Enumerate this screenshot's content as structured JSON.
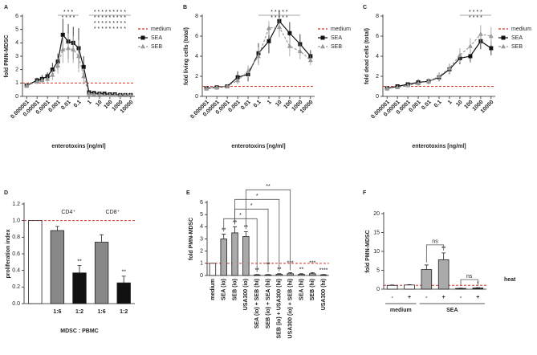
{
  "chart_data": [
    {
      "type": "line",
      "panel": "A",
      "ylabel": "fold PMN-MDSC",
      "xlabel": "enterotoxins [ng/ml]",
      "xscale": "log",
      "x": [
        1e-06,
        1e-05,
        3e-05,
        0.0001,
        0.0003,
        0.001,
        0.003,
        0.01,
        0.03,
        0.1,
        0.3,
        1,
        3,
        10,
        30,
        100,
        300,
        1000,
        3000,
        10000
      ],
      "xlim": [
        4e-07,
        25000
      ],
      "xticks": [
        1e-06,
        1e-05,
        0.0001,
        0.001,
        0.01,
        0.1,
        1,
        10,
        100,
        1000,
        10000
      ],
      "ylim": [
        0,
        6
      ],
      "yticks": [
        0,
        1,
        2,
        3,
        4,
        5,
        6
      ],
      "reference": {
        "name": "medium",
        "value": 1,
        "color": "#e0302a"
      },
      "series": [
        {
          "name": "SEA",
          "color": "#111111",
          "marker": "square",
          "dashed": false,
          "values": [
            0.8,
            1.2,
            1.3,
            1.5,
            2.0,
            2.6,
            4.6,
            4.1,
            4.0,
            3.6,
            2.2,
            0.3,
            0.25,
            0.2,
            0.2,
            0.15,
            0.15,
            0.1,
            0.1,
            0.1
          ],
          "errors": [
            0.1,
            0.2,
            0.3,
            0.3,
            0.5,
            0.6,
            1.2,
            1.3,
            1.2,
            1.5,
            0.8,
            0.1,
            0.1,
            0.1,
            0.1,
            0.05,
            0.05,
            0.05,
            0.05,
            0.05
          ]
        },
        {
          "name": "SEB",
          "color": "#999999",
          "marker": "triangle",
          "dashed": true,
          "values": [
            0.8,
            1.1,
            1.2,
            1.3,
            1.6,
            2.3,
            3.5,
            3.6,
            3.5,
            3.0,
            1.5,
            0.2,
            0.15,
            0.15,
            0.1,
            0.1,
            0.1,
            0.1,
            0.1,
            0.1
          ],
          "errors": [
            0.1,
            0.2,
            0.2,
            0.3,
            0.4,
            0.6,
            1.0,
            1.1,
            1.0,
            1.2,
            0.6,
            0.1,
            0.05,
            0.05,
            0.05,
            0.05,
            0.05,
            0.05,
            0.05,
            0.05
          ]
        }
      ],
      "annotations": [
        {
          "text": "*  *  *",
          "color": "#444444",
          "from": 0.001,
          "to": 0.1
        },
        {
          "text": "*  *  *  *",
          "color": "#aaaaaa",
          "from": 0.001,
          "to": 0.1
        },
        {
          "text": "* * * * * * * * *",
          "color": "#444444",
          "from": 1,
          "to": 10000
        },
        {
          "text": "* * * * * * * * *",
          "color": "#aaaaaa",
          "from": 1,
          "to": 10000
        },
        {
          "text": "* * * * * * * * *",
          "color": "#aaaaaa",
          "from": 1,
          "to": 10000
        },
        {
          "text": "* * * * * * * * *",
          "color": "#aaaaaa",
          "from": 1,
          "to": 10000
        }
      ]
    },
    {
      "type": "line",
      "panel": "B",
      "ylabel": "fold living cells (total)",
      "xlabel": "enterotoxins [ng/ml]",
      "xscale": "log",
      "x": [
        1e-06,
        1e-05,
        0.0001,
        0.001,
        0.01,
        0.1,
        1,
        10,
        100,
        1000,
        10000
      ],
      "xlim": [
        4e-07,
        25000
      ],
      "xticks": [
        1e-06,
        1e-05,
        0.0001,
        0.001,
        0.01,
        0.1,
        1,
        10,
        100,
        1000,
        10000
      ],
      "ylim": [
        0,
        8
      ],
      "yticks": [
        0,
        2,
        4,
        6,
        8
      ],
      "reference": {
        "name": "medium",
        "value": 1,
        "color": "#e0302a"
      },
      "series": [
        {
          "name": "SEA",
          "color": "#111111",
          "marker": "square",
          "dashed": false,
          "values": [
            0.8,
            0.9,
            1.0,
            1.9,
            2.2,
            4.3,
            5.5,
            7.5,
            6.3,
            5.2,
            4.0
          ],
          "errors": [
            0.1,
            0.1,
            0.2,
            0.6,
            0.7,
            1.0,
            1.2,
            1.0,
            1.1,
            1.0,
            0.6
          ]
        },
        {
          "name": "SEB",
          "color": "#999999",
          "marker": "triangle",
          "dashed": true,
          "values": [
            0.8,
            0.9,
            1.0,
            1.6,
            2.5,
            4.0,
            6.8,
            6.9,
            5.0,
            4.5,
            3.6
          ],
          "errors": [
            0.1,
            0.1,
            0.2,
            0.4,
            0.6,
            0.9,
            0.7,
            1.0,
            1.0,
            0.8,
            0.5
          ]
        }
      ],
      "annotations": [
        {
          "text": "*    *    *    *    *",
          "color": "#444444",
          "from": 0.1,
          "to": 1000
        },
        {
          "text": "*    *    *    *    *",
          "color": "#aaaaaa",
          "from": 0.1,
          "to": 1000
        }
      ]
    },
    {
      "type": "line",
      "panel": "C",
      "ylabel": "fold dead cells (total)",
      "xlabel": "enterotoxins [ng/ml]",
      "xscale": "log",
      "x": [
        1e-06,
        1e-05,
        0.0001,
        0.001,
        0.01,
        0.1,
        1,
        10,
        100,
        1000,
        10000
      ],
      "xlim": [
        4e-07,
        25000
      ],
      "xticks": [
        1e-06,
        1e-05,
        0.0001,
        0.001,
        0.01,
        0.1,
        1,
        10,
        100,
        1000,
        10000
      ],
      "ylim": [
        0,
        8
      ],
      "yticks": [
        0,
        2,
        4,
        6,
        8
      ],
      "reference": {
        "name": "medium",
        "value": 1,
        "color": "#e0302a"
      },
      "series": [
        {
          "name": "SEA",
          "color": "#111111",
          "marker": "square",
          "dashed": false,
          "values": [
            0.8,
            1.0,
            1.2,
            1.4,
            1.5,
            1.9,
            2.7,
            3.8,
            4.0,
            5.5,
            4.8
          ],
          "errors": [
            0.1,
            0.1,
            0.2,
            0.3,
            0.3,
            0.4,
            0.5,
            0.6,
            0.6,
            0.8,
            0.7
          ]
        },
        {
          "name": "SEB",
          "color": "#999999",
          "marker": "triangle",
          "dashed": true,
          "values": [
            0.8,
            0.9,
            1.1,
            1.3,
            1.5,
            2.0,
            2.8,
            4.1,
            5.0,
            6.2,
            6.0
          ],
          "errors": [
            0.1,
            0.1,
            0.2,
            0.3,
            0.3,
            0.4,
            0.5,
            0.7,
            0.8,
            0.9,
            0.9
          ]
        }
      ],
      "annotations": [
        {
          "text": "*    *    *    *",
          "color": "#444444",
          "from": 10,
          "to": 10000
        },
        {
          "text": "*    *    *    *",
          "color": "#aaaaaa",
          "from": 10,
          "to": 10000
        }
      ]
    },
    {
      "type": "bar",
      "panel": "D",
      "ylabel": "proliferation index",
      "xlabel": "MDSC : PBMC",
      "categories": [
        null,
        "1:6",
        "1:2",
        "1:6",
        "1:2"
      ],
      "values": [
        1,
        0.88,
        0.37,
        0.74,
        0.25
      ],
      "errors": [
        null,
        0.05,
        0.09,
        0.09,
        0.08
      ],
      "colors": [
        "#ffffff",
        "#888888",
        "#111111",
        "#888888",
        "#111111"
      ],
      "value_annotations": [
        null,
        null,
        "**",
        null,
        "**"
      ],
      "groups": [
        {
          "label": "CD4⁺",
          "from": 1,
          "to": 2
        },
        {
          "label": "CD8⁺",
          "from": 3,
          "to": 4
        }
      ],
      "ylim": [
        0,
        1.2
      ],
      "yticks": [
        {
          "value": 0,
          "label": "0.0"
        },
        0.2,
        0.4,
        0.6,
        0.8,
        {
          "value": 1,
          "label": "1.0"
        },
        1.2
      ],
      "reference": {
        "value": 1,
        "color": "#e0302a"
      }
    },
    {
      "type": "bar",
      "panel": "E",
      "ylabel": "fold PMN-MDSC",
      "categories": [
        "medium",
        "SEA (io)",
        "SEB (io)",
        "USA300 (io)",
        "SEA (io) + SEB (hi)",
        "SEB (io) + SEA (hi)",
        "SEB (io) + USA300 (hi)",
        "USA300 (io) + SEB (hi)",
        "SEA (hi)",
        "SEB (hi)",
        "USA300 (hi)"
      ],
      "values": [
        1,
        3.0,
        3.5,
        3.2,
        0.05,
        0.05,
        0.1,
        0.15,
        0.1,
        0.15,
        0.05
      ],
      "errors": [
        null,
        0.4,
        0.5,
        0.4,
        0.03,
        0.03,
        0.05,
        0.08,
        0.05,
        0.08,
        0.03
      ],
      "colors": [
        "#ffffff",
        "#aaaaaa",
        "#aaaaaa",
        "#aaaaaa",
        "#aaaaaa",
        "#aaaaaa",
        "#aaaaaa",
        "#aaaaaa",
        "#aaaaaa",
        "#aaaaaa",
        "#aaaaaa"
      ],
      "value_annotations": [
        null,
        "**",
        "**",
        "**",
        "**",
        "**",
        "**",
        "***",
        "**",
        "***",
        "****"
      ],
      "brackets": [
        {
          "text": "*",
          "from": 1,
          "to": 4
        },
        {
          "text": "*",
          "from": 2,
          "to": 5
        },
        {
          "text": "*",
          "from": 2,
          "to": 6
        },
        {
          "text": "**",
          "from": 3,
          "to": 7
        }
      ],
      "ylim": [
        0,
        6
      ],
      "yticks": [
        0,
        1,
        2,
        3,
        4,
        5,
        6
      ],
      "reference": {
        "value": 1,
        "color": "#e0302a"
      }
    },
    {
      "type": "bar",
      "panel": "F",
      "ylabel": "fold PMN-MDSC",
      "row_label": "heat",
      "categories": [
        "-",
        "+",
        "-",
        "+",
        "-",
        "+"
      ],
      "values": [
        1,
        1.1,
        5.2,
        7.8,
        0.2,
        0.3
      ],
      "errors": [
        0.1,
        0.1,
        1.2,
        1.8,
        0.05,
        0.1
      ],
      "colors": [
        "#ffffff",
        "#ffffff",
        "#aaaaaa",
        "#aaaaaa",
        "#222222",
        "#222222"
      ],
      "value_annotations": [
        null,
        null,
        null,
        "**",
        null,
        "*"
      ],
      "groups": [
        {
          "label": "medium",
          "from": 0,
          "to": 1
        },
        {
          "label": "SEA",
          "from": 2,
          "to": 5
        }
      ],
      "brackets": [
        {
          "text": "ns",
          "from": 2,
          "to": 3
        },
        {
          "text": "ns",
          "from": 4,
          "to": 5
        }
      ],
      "ylim": [
        0,
        20
      ],
      "yticks": [
        0,
        5,
        10,
        15,
        20
      ],
      "reference": {
        "value": 1,
        "color": "#e0302a"
      }
    }
  ]
}
